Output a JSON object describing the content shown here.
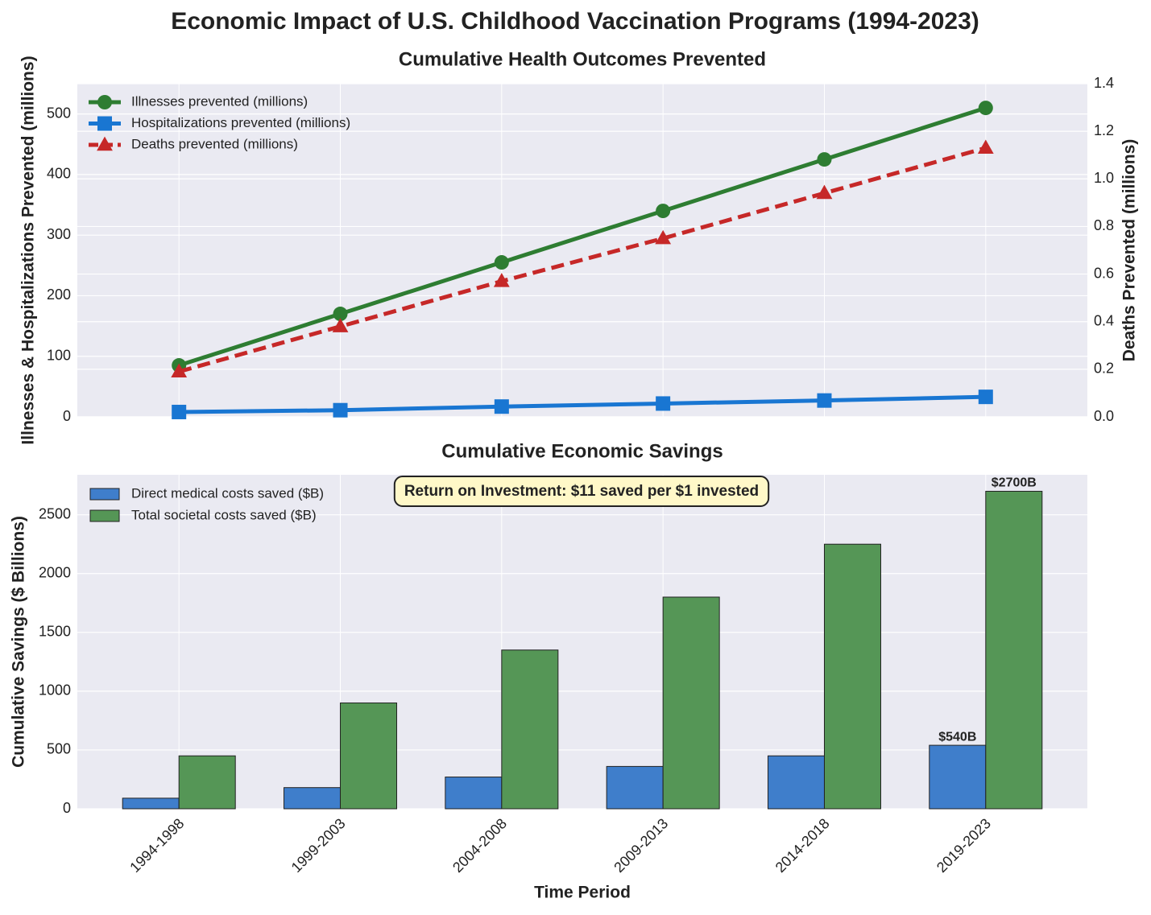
{
  "title": "Economic Impact of U.S. Childhood Vaccination Programs (1994-2023)",
  "chart_data": [
    {
      "type": "line",
      "title": "Cumulative Health Outcomes Prevented",
      "ylabel": "Illnesses & Hospitalizations Prevented (millions)",
      "y2label": "Deaths Prevented (millions)",
      "series": [
        {
          "name": "Illnesses prevented (millions)",
          "color": "#2e7d32",
          "marker": "circle",
          "linestyle": "solid",
          "values": [
            85,
            170,
            255,
            340,
            425,
            510
          ]
        },
        {
          "name": "Hospitalizations prevented (millions)",
          "color": "#1976d2",
          "marker": "square",
          "linestyle": "solid",
          "values": [
            8,
            11,
            17,
            22,
            27,
            33
          ]
        },
        {
          "name": "Deaths prevented (millions)",
          "color": "#c62828",
          "marker": "triangle",
          "linestyle": "dashed",
          "axis": "y2",
          "values": [
            0.19,
            0.38,
            0.57,
            0.75,
            0.94,
            1.13
          ]
        }
      ],
      "ylim": [
        0,
        550
      ],
      "yticks": [
        0,
        100,
        200,
        300,
        400,
        500
      ],
      "y2lim": [
        0,
        1.4
      ],
      "y2ticks": [
        {
          "value": 0,
          "label": "0.0"
        },
        0.2,
        0.4,
        0.6,
        0.8,
        {
          "value": 1,
          "label": "1.0"
        },
        1.2,
        1.4
      ],
      "grid": true,
      "legend": "upper left"
    },
    {
      "type": "bar",
      "title": "Cumulative Economic Savings",
      "xlabel": "Time Period",
      "ylabel": "Cumulative Savings ($ Billions)",
      "categories": [
        "1994-1998",
        "1999-2003",
        "2004-2008",
        "2009-2013",
        "2014-2018",
        "2019-2023"
      ],
      "series": [
        {
          "name": "Direct medical costs saved ($B)",
          "color": "#3f7ecb",
          "values": [
            90,
            180,
            270,
            360,
            450,
            540
          ],
          "value_labels": [
            null,
            null,
            null,
            null,
            null,
            "$540B"
          ]
        },
        {
          "name": "Total societal costs saved ($B)",
          "color": "#559656",
          "values": [
            450,
            900,
            1350,
            1800,
            2250,
            2700
          ],
          "value_labels": [
            null,
            null,
            null,
            null,
            null,
            "$2700B"
          ]
        }
      ],
      "ylim": [
        0,
        2840
      ],
      "yticks": [
        0,
        500,
        1000,
        1500,
        2000,
        2500
      ],
      "annotation": "Return on Investment: $11 saved per $1 invested",
      "grid": true,
      "legend": "upper left"
    }
  ]
}
